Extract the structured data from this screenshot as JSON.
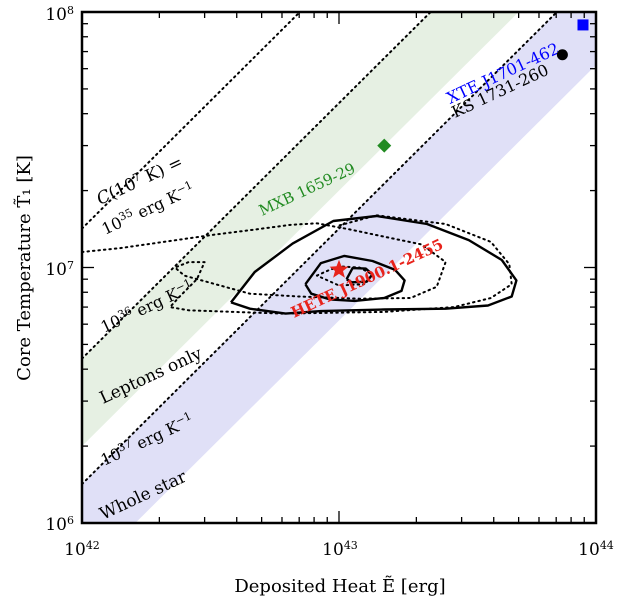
{
  "chart_data": {
    "type": "scatter",
    "xlabel": "Deposited Heat Ẽ [erg]",
    "ylabel": "Core Temperature T̃₁ [K]",
    "x_scale": "log",
    "y_scale": "log",
    "xlim": [
      1e+42,
      1e+44
    ],
    "ylim": [
      1000000.0,
      100000000.0
    ],
    "x_tick_labels": [
      {
        "value": 1e+42,
        "base": "10",
        "exp": "42"
      },
      {
        "value": 1e+43,
        "base": "10",
        "exp": "43"
      },
      {
        "value": 1e+44,
        "base": "10",
        "exp": "44"
      }
    ],
    "y_tick_labels": [
      {
        "value": 1000000.0,
        "base": "10",
        "exp": "6"
      },
      {
        "value": 10000000.0,
        "base": "10",
        "exp": "7"
      },
      {
        "value": 100000000.0,
        "base": "10",
        "exp": "8"
      }
    ],
    "bands": [
      {
        "name": "Leptons only",
        "color": "#e6f0e3",
        "y_at_xmin_low": 2000000.0,
        "y_at_xmin_high": 4400000.0
      },
      {
        "name": "Whole star",
        "color": "#e0e0f7",
        "y_at_xmin_low": 620000.0,
        "y_at_xmin_high": 1420000.0
      }
    ],
    "isolines": [
      {
        "label": "10^35 erg K^-1",
        "y_at_xmin": 14200000.0
      },
      {
        "label": "10^36 erg K^-1",
        "y_at_xmin": 4400000.0
      },
      {
        "label": "10^37 erg K^-1",
        "y_at_xmin": 1420000.0
      }
    ],
    "isoline_header": "C(10^7 K) =",
    "band_labels": {
      "leptons": "Leptons only",
      "whole_star": "Whole star",
      "iso_35": "10^35 erg K^-1",
      "iso_36": "10^36 erg K^-1",
      "iso_37": "10^37 erg K^-1"
    },
    "sources": [
      {
        "name": "XTE J1701-462",
        "x": 8.9e+43,
        "y": 89000000.0,
        "color": "#0000ff",
        "marker": "square"
      },
      {
        "name": "KS 1731-260",
        "x": 7.4e+43,
        "y": 68000000.0,
        "color": "#000000",
        "marker": "circle"
      },
      {
        "name": "MXB 1659-29",
        "x": 1.5e+43,
        "y": 30000000.0,
        "color": "#228b22",
        "marker": "diamond"
      },
      {
        "name": "HETE J1900.1-2455",
        "x": 1e+43,
        "y": 9800000.0,
        "color": "#e8231b",
        "marker": "star"
      }
    ],
    "colors": {
      "axis": "#000000",
      "leptons_band": "#e6f0e3",
      "whole_star_band": "#e0e0f7",
      "hete": "#e8231b",
      "mxb": "#228b22",
      "xte": "#0000ff",
      "ks": "#000000"
    },
    "solid_contours": [
      [
        [
          1.07e+43,
          9000000.0
        ],
        [
          1.12e+43,
          8750000.0
        ],
        [
          1.28e+43,
          8800000.0
        ],
        [
          1.35e+43,
          9400000.0
        ],
        [
          1.27e+43,
          9900000.0
        ],
        [
          1.13e+43,
          9950000.0
        ],
        [
          1.07e+43,
          9000000.0
        ]
      ],
      [
        [
          7.4e+42,
          8600000.0
        ],
        [
          7.8e+42,
          7900000.0
        ],
        [
          9.2e+42,
          7500000.0
        ],
        [
          1.15e+43,
          7400000.0
        ],
        [
          1.5e+43,
          7600000.0
        ],
        [
          1.75e+43,
          8100000.0
        ],
        [
          1.8e+43,
          8900000.0
        ],
        [
          1.65e+43,
          9800000.0
        ],
        [
          1.35e+43,
          10600000.0
        ],
        [
          1.05e+43,
          11100000.0
        ],
        [
          8.5e+42,
          10400000.0
        ],
        [
          7.4e+42,
          8600000.0
        ]
      ],
      [
        [
          3.8e+42,
          7300000.0
        ],
        [
          4.5e+42,
          6900000.0
        ],
        [
          6.2e+42,
          6600000.0
        ],
        [
          8.5e+42,
          6750000.0
        ],
        [
          1.5e+43,
          6850000.0
        ],
        [
          2.6e+43,
          6900000.0
        ],
        [
          3.8e+43,
          7100000.0
        ],
        [
          4.7e+43,
          7700000.0
        ],
        [
          4.9e+43,
          8900000.0
        ],
        [
          4.3e+43,
          10700000.0
        ],
        [
          3.2e+43,
          12800000.0
        ],
        [
          2.2e+43,
          14800000.0
        ],
        [
          1.4e+43,
          15900000.0
        ],
        [
          9.5e+42,
          15200000.0
        ],
        [
          6.6e+42,
          12400000.0
        ],
        [
          4.7e+42,
          9600000.0
        ],
        [
          3.8e+42,
          7300000.0
        ]
      ]
    ],
    "dotted_contours": [
      [
        [
          8.2e+42,
          9300000.0
        ],
        [
          9e+42,
          9700000.0
        ],
        [
          1e+43,
          10100000.0
        ],
        [
          1.2e+43,
          10000000.0
        ],
        [
          1.35e+43,
          9400000.0
        ],
        [
          1.25e+43,
          8600000.0
        ],
        [
          1e+43,
          8500000.0
        ],
        [
          8.2e+42,
          9300000.0
        ]
      ],
      [
        [
          1e+42,
          11500000.0
        ],
        [
          1.4e+42,
          11900000.0
        ],
        [
          2.2e+42,
          12700000.0
        ],
        [
          3.2e+42,
          13400000.0
        ],
        [
          4.5e+42,
          14000000.0
        ],
        [
          6.5e+42,
          14700000.0
        ],
        [
          8.2e+42,
          14900000.0
        ],
        [
          1.1e+43,
          14100000.0
        ],
        [
          1.5e+43,
          13200000.0
        ],
        [
          2.1e+43,
          12300000.0
        ],
        [
          2.6e+43,
          10500000.0
        ],
        [
          2.4e+43,
          8400000.0
        ],
        [
          1.9e+43,
          7600000.0
        ],
        [
          1.2e+43,
          7550000.0
        ],
        [
          7e+42,
          7700000.0
        ],
        [
          4.5e+42,
          7900000.0
        ],
        [
          2.5e+42,
          9300000.0
        ],
        [
          2.3e+42,
          10000000.0
        ],
        [
          2.6e+42,
          10500000.0
        ],
        [
          3e+42,
          10500000.0
        ],
        [
          2.8e+42,
          9000000.0
        ],
        [
          2.4e+42,
          7700000.0
        ],
        [
          2.2e+42,
          7000000.0
        ],
        [
          2.6e+42,
          6800000.0
        ],
        [
          6e+42,
          6600000.0
        ],
        [
          1.5e+43,
          6700000.0
        ],
        [
          2.8e+43,
          7000000.0
        ],
        [
          3.9e+43,
          7600000.0
        ],
        [
          4.7e+43,
          8600000.0
        ],
        [
          4.6e+43,
          10300000.0
        ],
        [
          3.9e+43,
          12600000.0
        ],
        [
          2.6e+43,
          14800000.0
        ],
        [
          1.4e+43,
          16000000.0
        ],
        [
          1e+43,
          14600000.0
        ]
      ]
    ]
  }
}
